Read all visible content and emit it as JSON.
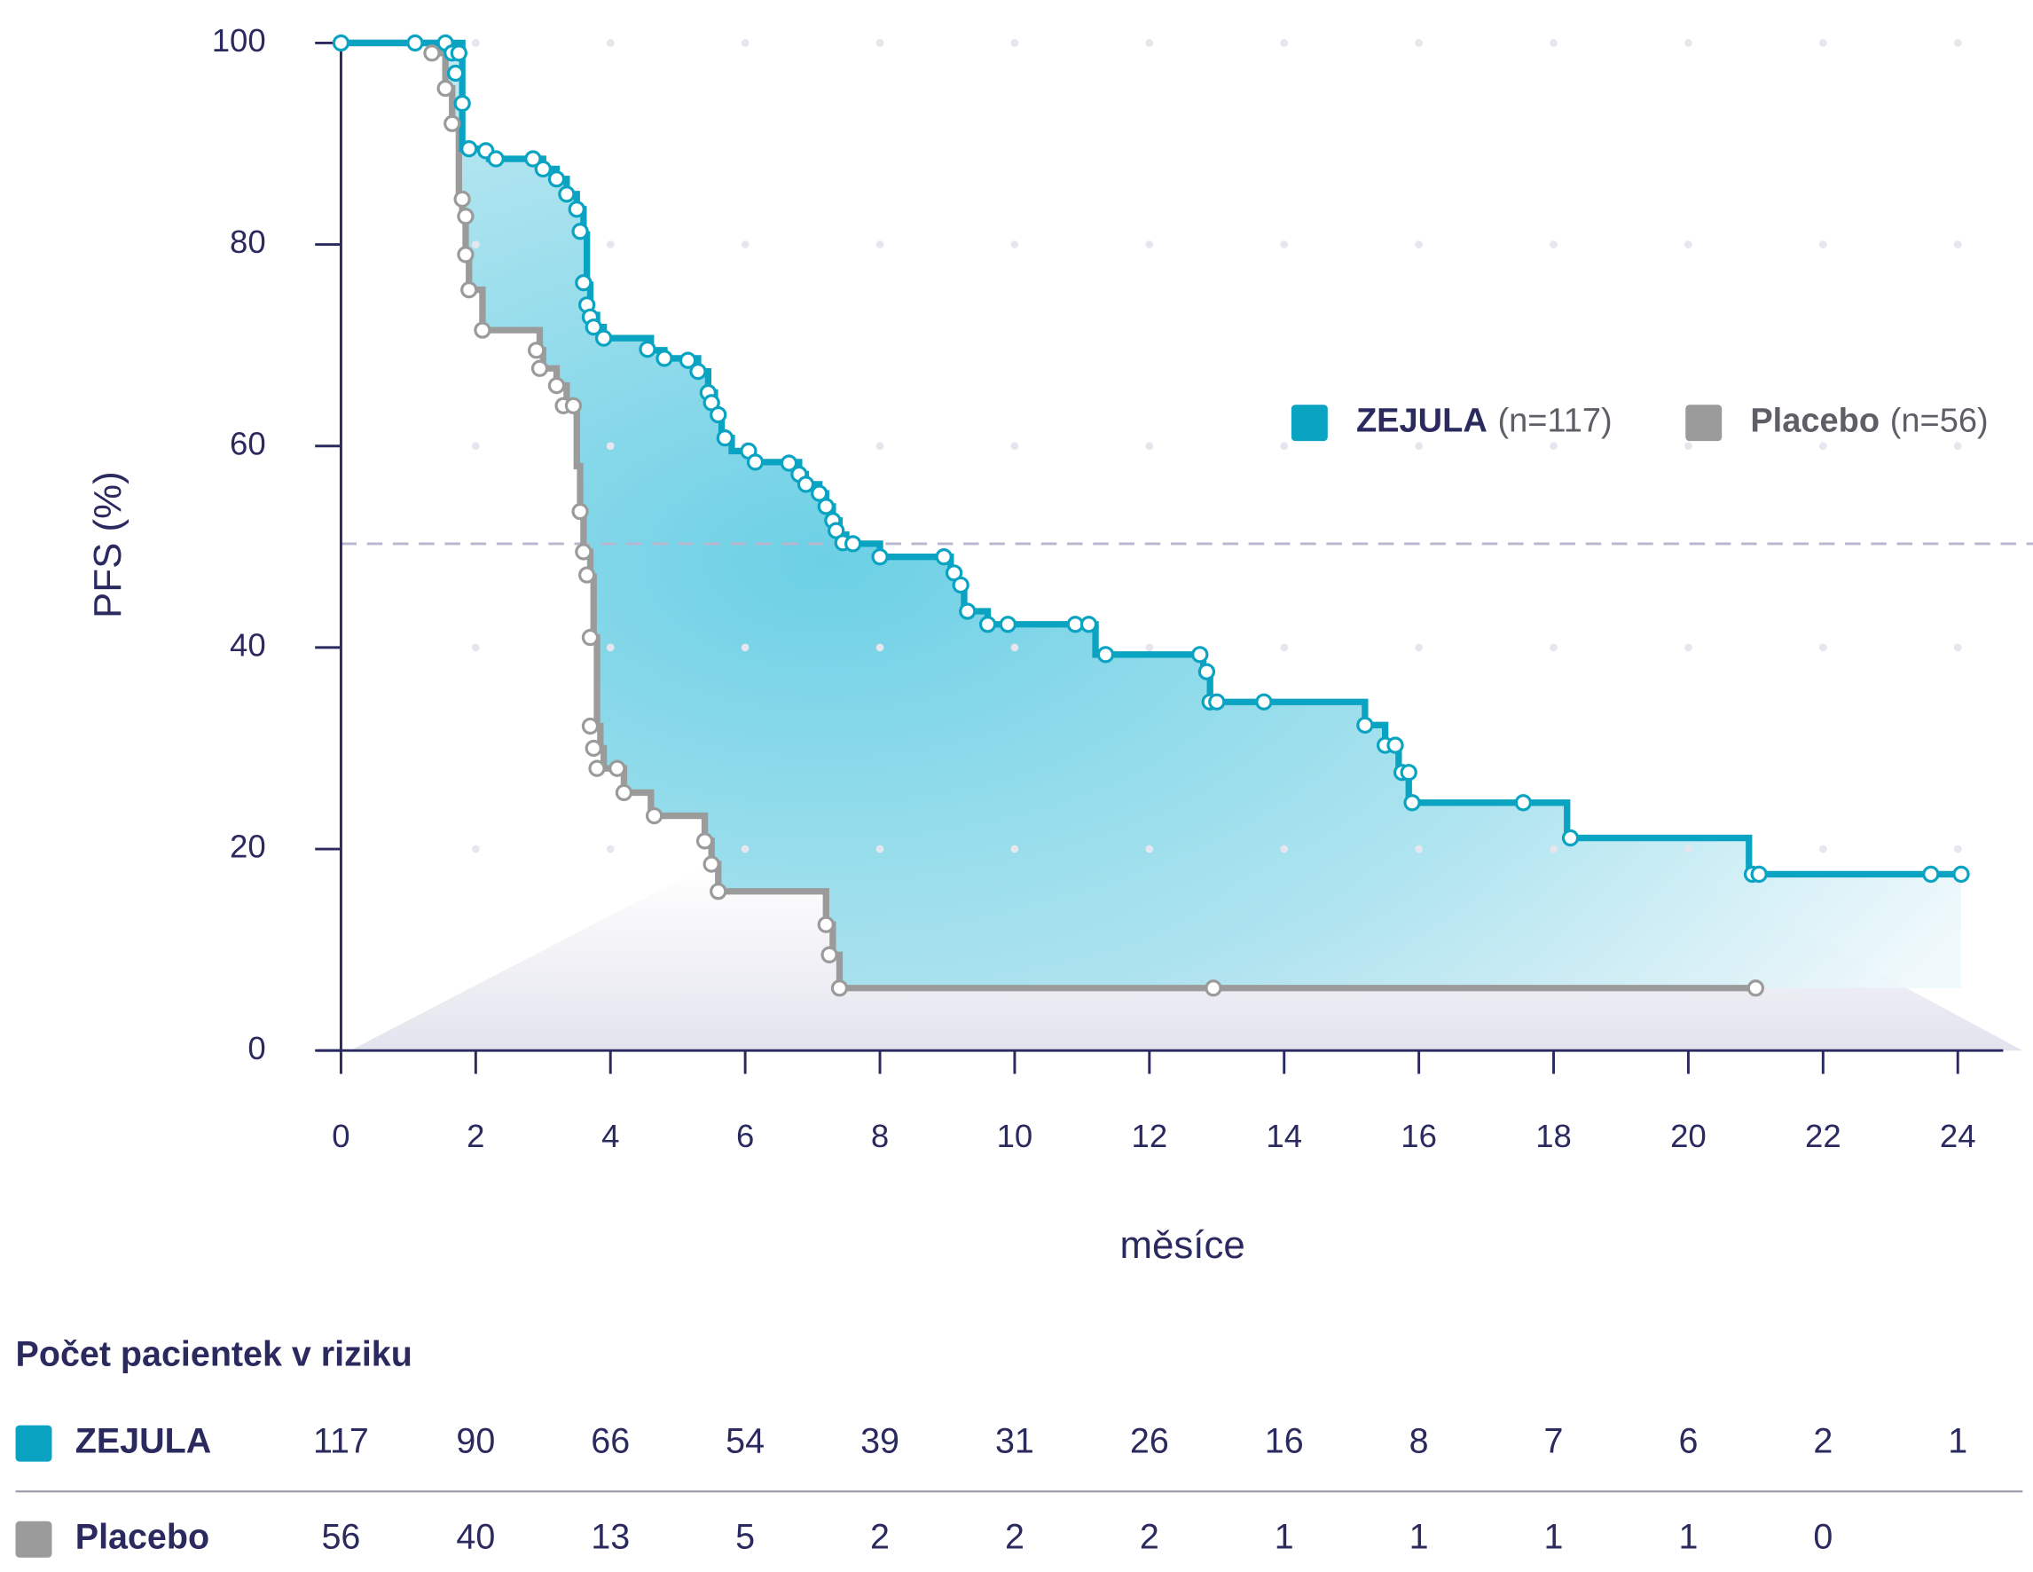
{
  "chart_data": {
    "type": "step",
    "y_label": "PFS (%)",
    "x_label": "měsíce",
    "xlim": [
      0,
      24
    ],
    "ylim": [
      0,
      100
    ],
    "xticks": [
      0,
      2,
      4,
      6,
      8,
      10,
      12,
      14,
      16,
      18,
      20,
      22,
      24
    ],
    "yticks": [
      0,
      20,
      40,
      60,
      80,
      100
    ],
    "grid": "dots",
    "hline": 50.3,
    "series": [
      {
        "name": "ZEJULA",
        "n_label": "(n=117)",
        "color": "#0aa3c2",
        "x": [
          0,
          1.8,
          2.2,
          3.0,
          3.2,
          3.35,
          3.5,
          3.6,
          3.65,
          3.7,
          3.8,
          3.9,
          4.6,
          4.8,
          5.3,
          5.45,
          5.55,
          5.65,
          5.8,
          6.1,
          6.8,
          6.9,
          7.1,
          7.2,
          7.3,
          7.4,
          7.5,
          8.0,
          9.05,
          9.15,
          9.25,
          9.6,
          11.2,
          12.8,
          12.9,
          15.2,
          15.5,
          15.7,
          15.85,
          18.2,
          20.9,
          24.05
        ],
        "values": [
          100,
          89.5,
          88.5,
          87.5,
          86.5,
          85,
          83.5,
          81,
          76,
          73,
          71.8,
          70.7,
          69.5,
          68.7,
          67.4,
          65.3,
          63.1,
          60.8,
          59.5,
          58.4,
          57.2,
          56.2,
          55.3,
          54,
          52.6,
          51.2,
          50.3,
          49,
          47.4,
          46.2,
          43.6,
          42.3,
          39.3,
          37.6,
          34.6,
          32.3,
          30.3,
          27.6,
          24.6,
          21.1,
          17.5,
          17.5
        ],
        "censored": {
          "x": [
            0,
            1.1,
            1.55,
            1.65,
            1.75,
            1.7,
            1.8,
            1.9,
            2.15,
            2.3,
            2.85,
            3.0,
            3.2,
            3.35,
            3.5,
            3.55,
            3.6,
            3.65,
            3.7,
            3.75,
            3.9,
            4.55,
            4.8,
            5.15,
            5.3,
            5.45,
            5.5,
            5.6,
            5.7,
            6.05,
            6.15,
            6.65,
            6.8,
            6.9,
            7.1,
            7.2,
            7.3,
            7.35,
            7.45,
            7.6,
            8.0,
            8.95,
            9.1,
            9.2,
            9.3,
            9.6,
            9.9,
            10.9,
            11.1,
            11.35,
            12.75,
            12.85,
            12.9,
            13.0,
            13.7,
            15.2,
            15.5,
            15.65,
            15.75,
            15.85,
            15.9,
            17.55,
            18.25,
            20.95,
            21.05,
            23.6,
            24.05
          ],
          "values": [
            100,
            100,
            100,
            99,
            99,
            97,
            94,
            89.5,
            89.3,
            88.5,
            88.5,
            87.5,
            86.5,
            85,
            83.5,
            81.3,
            76.2,
            74,
            72.8,
            71.8,
            70.7,
            69.6,
            68.7,
            68.5,
            67.4,
            65.3,
            64.3,
            63.1,
            60.8,
            59.5,
            58.4,
            58.3,
            57.2,
            56.2,
            55.3,
            54,
            52.6,
            51.6,
            50.4,
            50.3,
            49,
            49,
            47.4,
            46.2,
            43.6,
            42.3,
            42.3,
            42.3,
            42.3,
            39.3,
            39.3,
            37.6,
            34.6,
            34.6,
            34.6,
            32.3,
            30.3,
            30.3,
            27.6,
            27.6,
            24.6,
            24.6,
            21.1,
            17.5,
            17.5,
            17.5,
            17.5
          ]
        }
      },
      {
        "name": "Placebo",
        "n_label": "(n=56)",
        "color": "#9b9b9b",
        "x": [
          0,
          1.4,
          1.55,
          1.65,
          1.75,
          1.8,
          1.85,
          1.9,
          2.1,
          2.95,
          3.0,
          3.2,
          3.35,
          3.5,
          3.55,
          3.6,
          3.7,
          3.75,
          3.8,
          3.85,
          3.9,
          4.2,
          4.6,
          5.4,
          5.5,
          5.6,
          7.2,
          7.3,
          7.4,
          21.0
        ],
        "values": [
          100,
          99,
          95.5,
          92,
          85,
          83,
          79,
          75.5,
          71.5,
          69.5,
          67.7,
          66,
          64,
          58,
          53.5,
          49.5,
          47,
          41,
          32.2,
          30,
          28,
          25.6,
          23.3,
          20.8,
          18.5,
          15.8,
          12.5,
          9.5,
          6.2,
          6.2
        ],
        "censored": {
          "x": [
            1.35,
            1.55,
            1.65,
            1.8,
            1.85,
            1.85,
            1.9,
            2.1,
            2.9,
            2.95,
            3.2,
            3.3,
            3.45,
            3.55,
            3.6,
            3.65,
            3.7,
            3.7,
            3.75,
            3.8,
            4.1,
            4.2,
            4.65,
            5.4,
            5.5,
            5.6,
            7.2,
            7.25,
            7.4,
            12.95,
            21.0
          ],
          "values": [
            99,
            95.5,
            92,
            84.5,
            82.8,
            79,
            75.5,
            71.5,
            69.5,
            67.7,
            66,
            64,
            64,
            53.5,
            49.5,
            47.2,
            41,
            32.2,
            30,
            28,
            28,
            25.6,
            23.3,
            20.8,
            18.5,
            15.8,
            12.5,
            9.5,
            6.2,
            6.2,
            6.2
          ]
        }
      }
    ]
  },
  "risk_table": {
    "title": "Počet pacientek v riziku",
    "rows": [
      {
        "name": "ZEJULA",
        "values": [
          117,
          90,
          66,
          54,
          39,
          31,
          26,
          16,
          8,
          7,
          6,
          2,
          1
        ]
      },
      {
        "name": "Placebo",
        "values": [
          56,
          40,
          13,
          5,
          2,
          2,
          2,
          1,
          1,
          1,
          1,
          0,
          null
        ]
      }
    ]
  }
}
